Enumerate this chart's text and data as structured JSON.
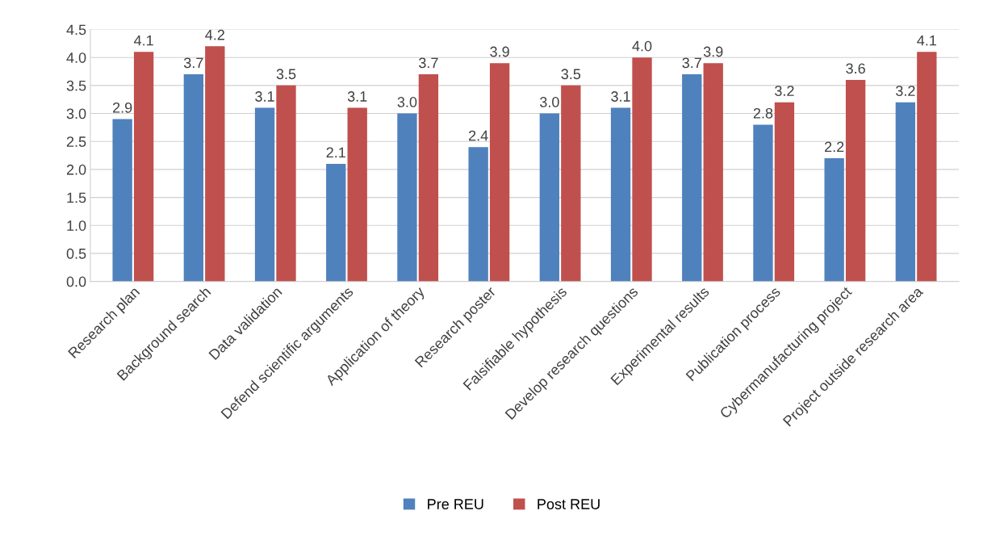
{
  "chart_data": {
    "type": "bar",
    "categories": [
      "Research plan",
      "Background search",
      "Data validation",
      "Defend scientific arguments",
      "Application of theory",
      "Research poster",
      "Falsifiable hypothesis",
      "Develop research questions",
      "Experimental results",
      "Publication process",
      "Cybermanufacturing project",
      "Project outside research area"
    ],
    "series": [
      {
        "name": "Pre REU",
        "color": "#4f81bd",
        "values": [
          2.9,
          3.7,
          3.1,
          2.1,
          3.0,
          2.4,
          3.0,
          3.1,
          3.7,
          2.8,
          2.2,
          3.2
        ],
        "value_labels": [
          "2.9",
          "3.7",
          "3.1",
          "2.1",
          "3.0",
          "2.4",
          "3.0",
          "3.1",
          "3.7",
          "2.8",
          "2.2",
          "3.2"
        ]
      },
      {
        "name": "Post REU",
        "color": "#c0504d",
        "values": [
          4.1,
          4.2,
          3.5,
          3.1,
          3.7,
          3.9,
          3.5,
          4.0,
          3.9,
          3.2,
          3.6,
          4.1
        ],
        "value_labels": [
          "4.1",
          "4.2",
          "3.5",
          "3.1",
          "3.7",
          "3.9",
          "3.5",
          "4.0",
          "3.9",
          "3.2",
          "3.6",
          "4.1"
        ]
      }
    ],
    "ylim": [
      0,
      4.5
    ],
    "yticks": [
      {
        "value": 0,
        "label": "0.0"
      },
      {
        "value": 0.5,
        "label": "0.5"
      },
      {
        "value": 1,
        "label": "1.0"
      },
      {
        "value": 1.5,
        "label": "1.5"
      },
      {
        "value": 2,
        "label": "2.0"
      },
      {
        "value": 2.5,
        "label": "2.5"
      },
      {
        "value": 3,
        "label": "3.0"
      },
      {
        "value": 3.5,
        "label": "3.5"
      },
      {
        "value": 4,
        "label": "4.0"
      },
      {
        "value": 4.5,
        "label": "4.5"
      }
    ],
    "grid": "y",
    "legend": "bottom"
  }
}
